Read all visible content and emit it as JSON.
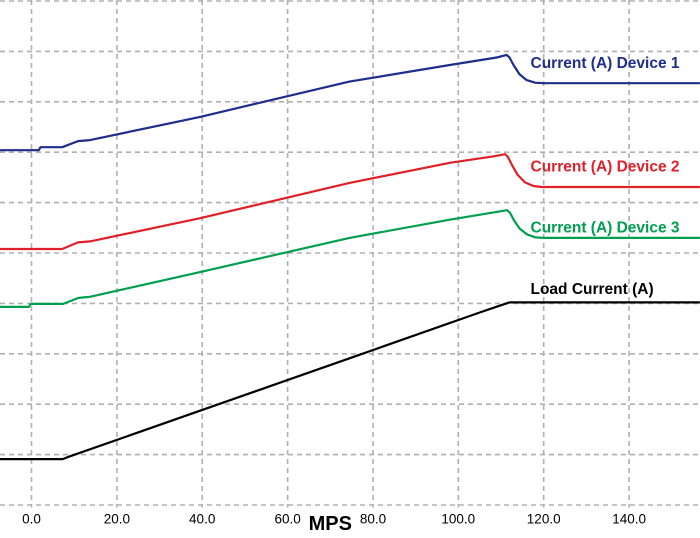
{
  "page": {
    "background": "#ffffff"
  },
  "chart_data": {
    "type": "line",
    "title": "",
    "xlabel": "MPS",
    "ylabel": "",
    "xlim": [
      -7.38,
      156.62
    ],
    "ylim": [
      -0.655,
      10.02
    ],
    "grid": {
      "color": "#b0b0b0",
      "style": "dashed",
      "y_unit_note": "y-axis tick labels are cropped out of view; y values expressed in gridline units (1 unit per horizontal gridline, 0 = bottom visible gridline)"
    },
    "x_axis": {
      "tick_values": [
        0,
        20,
        40,
        60,
        80,
        100,
        120,
        140
      ],
      "tick_labels": [
        "0.0",
        "20.0",
        "40.0",
        "60.0",
        "80.0",
        "100.0",
        "120.0",
        "140.0"
      ],
      "title": "MPS",
      "title_x": 70.0
    },
    "y_gridlines": [
      0,
      1,
      2,
      3,
      4,
      5,
      6,
      7,
      8,
      9,
      10
    ],
    "series": [
      {
        "name": "Current (A) Device 1",
        "color": "#1f2d8c",
        "label": {
          "text": "Current (A) Device 1",
          "x": 116.9,
          "y": 8.76
        },
        "points": [
          [
            -7.4,
            7.04
          ],
          [
            1.7,
            7.04
          ],
          [
            2.1,
            7.1
          ],
          [
            7.2,
            7.1
          ],
          [
            10.9,
            7.22
          ],
          [
            13.7,
            7.24
          ],
          [
            39.5,
            7.7
          ],
          [
            74.5,
            8.4
          ],
          [
            98.0,
            8.73
          ],
          [
            109.0,
            8.88
          ],
          [
            111.3,
            8.93
          ],
          [
            112.0,
            8.88
          ],
          [
            113.0,
            8.72
          ],
          [
            114.3,
            8.55
          ],
          [
            116.0,
            8.43
          ],
          [
            118.0,
            8.38
          ],
          [
            120.0,
            8.37
          ],
          [
            156.6,
            8.37
          ]
        ]
      },
      {
        "name": "Current (A) Device 2",
        "color": "#e02028",
        "label": {
          "text": "Current (A) Device 2",
          "x": 116.9,
          "y": 6.71
        },
        "points": [
          [
            -7.4,
            5.08
          ],
          [
            7.2,
            5.08
          ],
          [
            10.9,
            5.21
          ],
          [
            13.7,
            5.23
          ],
          [
            39.5,
            5.69
          ],
          [
            74.5,
            6.39
          ],
          [
            98.0,
            6.79
          ],
          [
            108.5,
            6.92
          ],
          [
            110.9,
            6.96
          ],
          [
            111.6,
            6.91
          ],
          [
            112.6,
            6.74
          ],
          [
            113.9,
            6.55
          ],
          [
            115.6,
            6.4
          ],
          [
            117.6,
            6.33
          ],
          [
            119.5,
            6.31
          ],
          [
            156.6,
            6.31
          ]
        ]
      },
      {
        "name": "Current (A) Device 3",
        "color": "#009e4f",
        "label": {
          "text": "Current (A) Device 3",
          "x": 116.9,
          "y": 5.5
        },
        "points": [
          [
            -7.4,
            3.93
          ],
          [
            -0.6,
            3.93
          ],
          [
            -0.2,
            3.99
          ],
          [
            7.4,
            3.99
          ],
          [
            11.0,
            4.11
          ],
          [
            13.7,
            4.13
          ],
          [
            39.5,
            4.62
          ],
          [
            74.5,
            5.3
          ],
          [
            98.0,
            5.66
          ],
          [
            109.3,
            5.82
          ],
          [
            111.4,
            5.85
          ],
          [
            112.1,
            5.8
          ],
          [
            113.1,
            5.64
          ],
          [
            114.4,
            5.48
          ],
          [
            116.1,
            5.37
          ],
          [
            118.1,
            5.31
          ],
          [
            120.0,
            5.3
          ],
          [
            156.6,
            5.3
          ]
        ]
      },
      {
        "name": "Load Current (A)",
        "color": "#000000",
        "label": {
          "text": "Load Current (A)",
          "x": 116.9,
          "y": 4.28
        },
        "points": [
          [
            -7.4,
            0.91
          ],
          [
            7.3,
            0.91
          ],
          [
            8.5,
            0.95
          ],
          [
            39.5,
            1.87
          ],
          [
            74.5,
            2.91
          ],
          [
            105.0,
            3.82
          ],
          [
            109.5,
            3.95
          ],
          [
            112.0,
            4.02
          ],
          [
            156.6,
            4.02
          ]
        ]
      }
    ]
  }
}
